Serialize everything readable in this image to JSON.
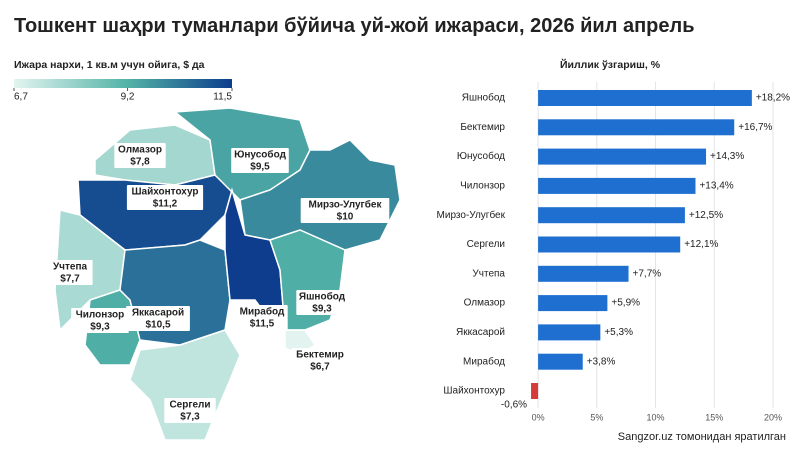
{
  "title": "Тошкент шаҳри туманлари бўйича уй-жой ижараси, 2026 йил апрель",
  "source": "Sangzor.uz томонидан яратилган",
  "chart_data": [
    {
      "type": "choropleth",
      "legend_title": "Ижара нархи, 1 кв.м учун ойига, $ да",
      "legend_ticks": [
        {
          "value": 6.7,
          "label": "6,7"
        },
        {
          "value": 9.2,
          "label": "9,2"
        },
        {
          "value": 11.5,
          "label": "11,5"
        }
      ],
      "colors": [
        "#e3f4f0",
        "#52b3a7",
        "#0d3d8c"
      ],
      "regions": [
        {
          "name": "Олмазор",
          "value": 7.8,
          "label": "$7,8"
        },
        {
          "name": "Шайхонтохур",
          "value": 11.2,
          "label": "$11,2"
        },
        {
          "name": "Юнусобод",
          "value": 9.5,
          "label": "$9,5"
        },
        {
          "name": "Мирзо-Улугбек",
          "value": 10,
          "label": "$10"
        },
        {
          "name": "Учтепа",
          "value": 7.7,
          "label": "$7,7"
        },
        {
          "name": "Чилонзор",
          "value": 9.3,
          "label": "$9,3"
        },
        {
          "name": "Яккасарой",
          "value": 10.5,
          "label": "$10,5"
        },
        {
          "name": "Мирабод",
          "value": 11.5,
          "label": "$11,5"
        },
        {
          "name": "Яшнобод",
          "value": 9.3,
          "label": "$9,3"
        },
        {
          "name": "Бектемир",
          "value": 6.7,
          "label": "$6,7"
        },
        {
          "name": "Сергели",
          "value": 7.3,
          "label": "$7,3"
        }
      ]
    },
    {
      "type": "bar",
      "title": "Йиллик ўзгариш, %",
      "categories": [
        "Яшнобод",
        "Бектемир",
        "Юнусобод",
        "Чилонзор",
        "Мирзо-Улугбек",
        "Сергели",
        "Учтепа",
        "Олмазор",
        "Яккасарой",
        "Мирабод",
        "Шайхонтохур"
      ],
      "values": [
        18.2,
        16.7,
        14.3,
        13.4,
        12.5,
        12.1,
        7.7,
        5.9,
        5.3,
        3.8,
        -0.6
      ],
      "value_labels": [
        "+18,2%",
        "+16,7%",
        "+14,3%",
        "+13,4%",
        "+12,5%",
        "+12,1%",
        "+7,7%",
        "+5,9%",
        "+5,3%",
        "+3,8%",
        "-0,6%"
      ],
      "color": "#1f6fd1",
      "negative_color": "#d63b3b",
      "xlim": [
        -1.2,
        20
      ],
      "xticks": [
        {
          "value": 0,
          "label": "0%"
        },
        {
          "value": 5,
          "label": "5%"
        },
        {
          "value": 10,
          "label": "10%"
        },
        {
          "value": 15,
          "label": "15%"
        },
        {
          "value": 20,
          "label": "20%"
        }
      ],
      "grid": true
    }
  ]
}
